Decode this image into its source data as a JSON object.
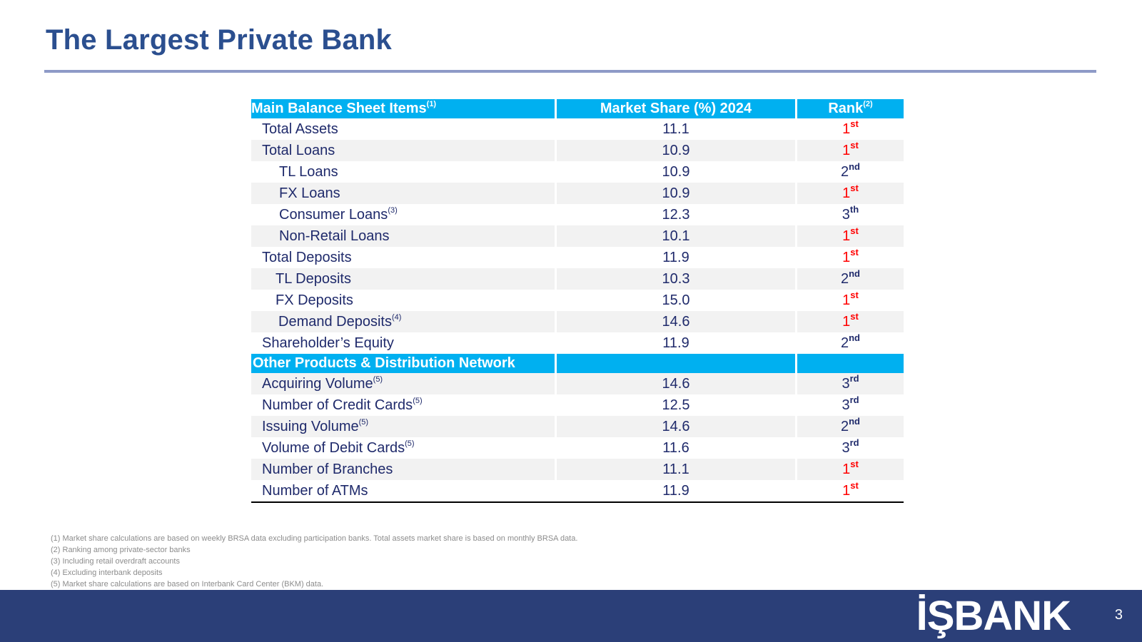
{
  "slide": {
    "title": "The Largest Private Bank",
    "page_number": "3",
    "logo_text": "İŞBANK"
  },
  "table": {
    "header": {
      "col1": "Main Balance Sheet Items",
      "col1_sup": "(1)",
      "col2": "Market Share (%) 2024",
      "col3": "Rank",
      "col3_sup": "(2)"
    },
    "section1": [
      {
        "label": "Total Assets",
        "sup": "",
        "value": "11.1",
        "rank": "1",
        "rank_sup": "st",
        "red": true,
        "indent": 0
      },
      {
        "label": "Total Loans",
        "sup": "",
        "value": "10.9",
        "rank": "1",
        "rank_sup": "st",
        "red": true,
        "indent": 0
      },
      {
        "label": "TL Loans",
        "sup": "",
        "value": "10.9",
        "rank": "2",
        "rank_sup": "nd",
        "red": false,
        "indent": 1
      },
      {
        "label": "FX Loans",
        "sup": "",
        "value": "10.9",
        "rank": "1",
        "rank_sup": "st",
        "red": true,
        "indent": 1
      },
      {
        "label": "Consumer Loans",
        "sup": "(3)",
        "value": "12.3",
        "rank": "3",
        "rank_sup": "th",
        "red": false,
        "indent": 1
      },
      {
        "label": "Non-Retail Loans",
        "sup": "",
        "value": "10.1",
        "rank": "1",
        "rank_sup": "st",
        "red": true,
        "indent": 1
      },
      {
        "label": "Total Deposits",
        "sup": "",
        "value": "11.9",
        "rank": "1",
        "rank_sup": "st",
        "red": true,
        "indent": 0
      },
      {
        "label": "TL Deposits",
        "sup": "",
        "value": "10.3",
        "rank": "2",
        "rank_sup": "nd",
        "red": false,
        "indent": 2
      },
      {
        "label": "FX Deposits",
        "sup": "",
        "value": "15.0",
        "rank": "1",
        "rank_sup": "st",
        "red": true,
        "indent": 2
      },
      {
        "label": "Demand Deposits",
        "sup": "(4)",
        "value": "14.6",
        "rank": "1",
        "rank_sup": "st",
        "red": true,
        "indent": 3
      },
      {
        "label": "Shareholder’s Equity",
        "sup": "",
        "value": "11.9",
        "rank": "2",
        "rank_sup": "nd",
        "red": false,
        "indent": 0
      }
    ],
    "section2_title": "Other Products & Distribution Network",
    "section2": [
      {
        "label": "Acquiring Volume",
        "sup": "(5)",
        "value": "14.6",
        "rank": "3",
        "rank_sup": "rd",
        "red": false,
        "indent": 0
      },
      {
        "label": "Number of Credit Cards",
        "sup": "(5)",
        "value": "12.5",
        "rank": "3",
        "rank_sup": "rd",
        "red": false,
        "indent": 0
      },
      {
        "label": "Issuing Volume",
        "sup": "(5)",
        "value": "14.6",
        "rank": "2",
        "rank_sup": "nd",
        "red": false,
        "indent": 0
      },
      {
        "label": "Volume of Debit Cards",
        "sup": "(5)",
        "value": "11.6",
        "rank": "3",
        "rank_sup": "rd",
        "red": false,
        "indent": 0
      },
      {
        "label": "Number of Branches",
        "sup": "",
        "value": "11.1",
        "rank": "1",
        "rank_sup": "st",
        "red": true,
        "indent": 0
      },
      {
        "label": "Number of ATMs",
        "sup": "",
        "value": "11.9",
        "rank": "1",
        "rank_sup": "st",
        "red": true,
        "indent": 0
      }
    ]
  },
  "footnotes": [
    "(1) Market share calculations are based on weekly BRSA data excluding participation banks. Total assets market share is based on monthly BRSA data.",
    "(2) Ranking among private-sector banks",
    "(3) Including retail overdraft accounts",
    "(4) Excluding interbank deposits",
    "(5) Market share calculations are based on Interbank Card Center (BKM) data."
  ],
  "colors": {
    "title": "#2b4f8f",
    "header_bg": "#00b0f0",
    "text_navy": "#1f2a6b",
    "rank_red": "#ff0000",
    "footer_bg": "#2b3f78"
  }
}
